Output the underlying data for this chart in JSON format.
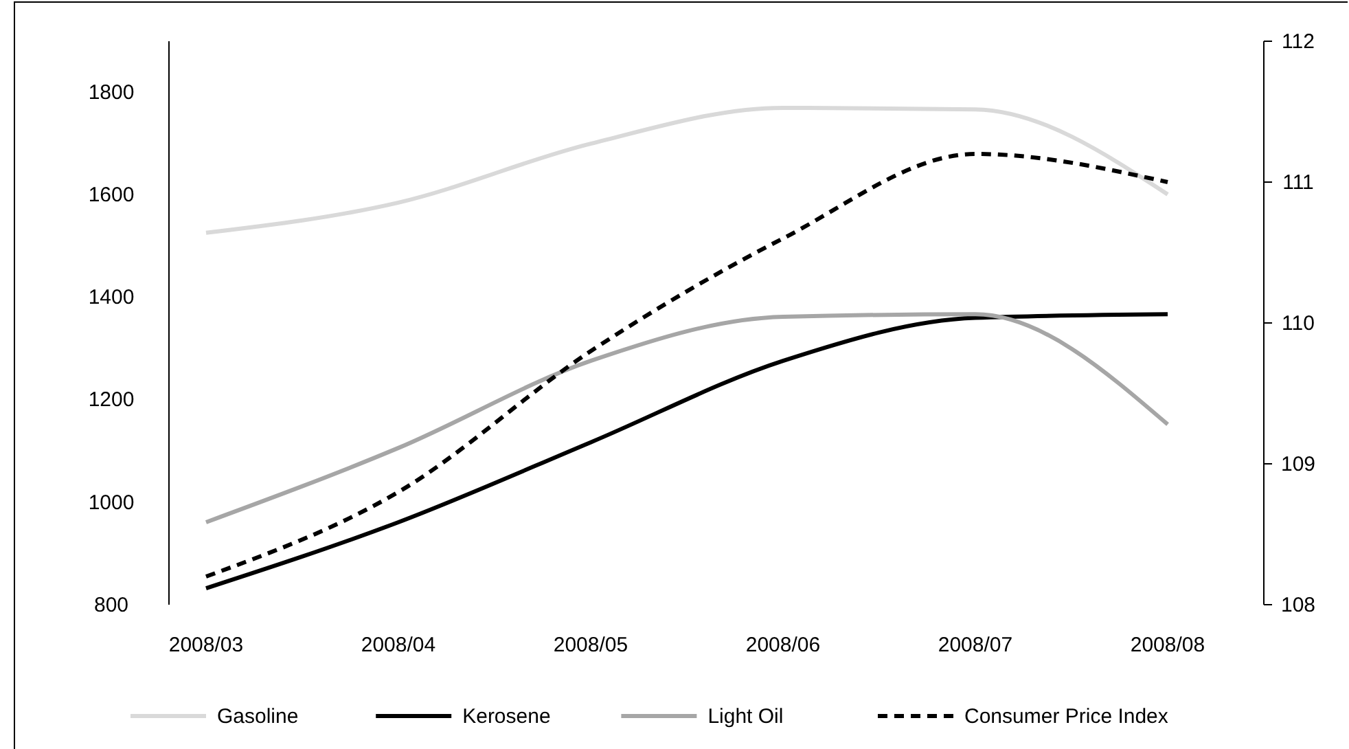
{
  "chart_data": {
    "type": "line",
    "categories": [
      "2008/03",
      "2008/04",
      "2008/05",
      "2008/06",
      "2008/07",
      "2008/08"
    ],
    "ylim": [
      800,
      1900
    ],
    "yticks": [
      800,
      1000,
      1200,
      1400,
      1600,
      1800
    ],
    "y2lim": [
      108,
      112
    ],
    "y2ticks": [
      108,
      109,
      110,
      111,
      112
    ],
    "legend": "bottom",
    "grid": false,
    "marker": "none",
    "series": [
      {
        "name": "Gasoline",
        "color": "#d9d9d9",
        "values": [
          1526,
          1585,
          1700,
          1770,
          1767,
          1601
        ]
      },
      {
        "name": "Kerosene",
        "color": "#000000",
        "values": [
          832,
          961,
          1117,
          1276,
          1360,
          1367
        ]
      },
      {
        "name": "Light Oil",
        "color": "#a6a6a6",
        "values": [
          961,
          1106,
          1276,
          1362,
          1367,
          1152
        ]
      },
      {
        "name": "Consumer Price Index",
        "color": "#000000",
        "axis": "y2",
        "line_style": "dashed",
        "values": [
          108.2,
          108.8,
          109.8,
          110.6,
          111.2,
          111.0
        ]
      }
    ]
  }
}
